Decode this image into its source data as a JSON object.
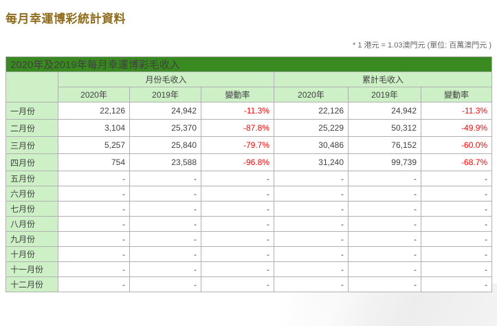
{
  "page": {
    "title": "每月幸運博彩統計資料",
    "note": "* 1 港元 = 1.03澳門元 (單位: 百萬澳門元 )"
  },
  "colors": {
    "title_text": "#8f6c1c",
    "caption_bg": "#398a21",
    "header_cell_bg": "#cdf0c6",
    "negative_text": "#ff0000",
    "border": "#b0b0b0"
  },
  "table": {
    "caption": "2020年及2019年每月幸運博彩毛收入",
    "group_headers": {
      "monthly": "月份毛收入",
      "cumulative": "累計毛收入"
    },
    "sub_headers": {
      "y2020": "2020年",
      "y2019": "2019年",
      "change": "變動率"
    },
    "rows": [
      {
        "month": "一月份",
        "m2020": "22,126",
        "m2019": "24,942",
        "mchg": "-11.3%",
        "c2020": "22,126",
        "c2019": "24,942",
        "cchg": "-11.3%"
      },
      {
        "month": "二月份",
        "m2020": "3,104",
        "m2019": "25,370",
        "mchg": "-87.8%",
        "c2020": "25,229",
        "c2019": "50,312",
        "cchg": "-49.9%"
      },
      {
        "month": "三月份",
        "m2020": "5,257",
        "m2019": "25,840",
        "mchg": "-79.7%",
        "c2020": "30,486",
        "c2019": "76,152",
        "cchg": "-60.0%"
      },
      {
        "month": "四月份",
        "m2020": "754",
        "m2019": "23,588",
        "mchg": "-96.8%",
        "c2020": "31,240",
        "c2019": "99,739",
        "cchg": "-68.7%"
      },
      {
        "month": "五月份",
        "m2020": "-",
        "m2019": "-",
        "mchg": "-",
        "c2020": "-",
        "c2019": "-",
        "cchg": "-"
      },
      {
        "month": "六月份",
        "m2020": "-",
        "m2019": "-",
        "mchg": "-",
        "c2020": "-",
        "c2019": "-",
        "cchg": "-"
      },
      {
        "month": "七月份",
        "m2020": "-",
        "m2019": "-",
        "mchg": "-",
        "c2020": "-",
        "c2019": "-",
        "cchg": "-"
      },
      {
        "month": "八月份",
        "m2020": "-",
        "m2019": "-",
        "mchg": "-",
        "c2020": "-",
        "c2019": "-",
        "cchg": "-"
      },
      {
        "month": "九月份",
        "m2020": "-",
        "m2019": "-",
        "mchg": "-",
        "c2020": "-",
        "c2019": "-",
        "cchg": "-"
      },
      {
        "month": "十月份",
        "m2020": "-",
        "m2019": "-",
        "mchg": "-",
        "c2020": "-",
        "c2019": "-",
        "cchg": "-"
      },
      {
        "month": "十一月份",
        "m2020": "-",
        "m2019": "-",
        "mchg": "-",
        "c2020": "-",
        "c2019": "-",
        "cchg": "-"
      },
      {
        "month": "十二月份",
        "m2020": "-",
        "m2019": "-",
        "mchg": "-",
        "c2020": "-",
        "c2019": "-",
        "cchg": "-"
      }
    ]
  }
}
